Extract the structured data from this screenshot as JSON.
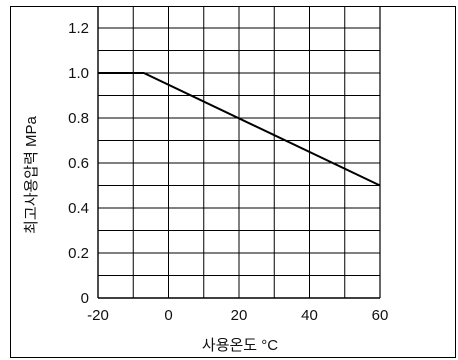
{
  "chart_data": {
    "type": "line",
    "title": "",
    "xlabel": "사용온도 °C",
    "ylabel": "최고사용압력 MPa",
    "xlim": [
      -20,
      60
    ],
    "ylim": [
      0,
      1.25
    ],
    "x_ticks": [
      -20,
      0,
      20,
      40,
      60
    ],
    "x_tick_labels": [
      "-20",
      "0",
      "20",
      "40",
      "60"
    ],
    "y_ticks": [
      0,
      0.2,
      0.4,
      0.6,
      0.8,
      1.0,
      1.2
    ],
    "y_tick_labels": [
      "0",
      "0.2",
      "0.4",
      "0.6",
      "0.8",
      "1.0",
      "1.2"
    ],
    "x_minor_grid": [
      -10,
      10,
      30,
      50
    ],
    "y_minor_grid": [
      0.1,
      0.3,
      0.5,
      0.7,
      0.9,
      1.1
    ],
    "grid": true,
    "series": [
      {
        "x": [
          -20,
          -7,
          60
        ],
        "y": [
          1.0,
          1.0,
          0.5
        ],
        "color": "#000000"
      }
    ]
  }
}
